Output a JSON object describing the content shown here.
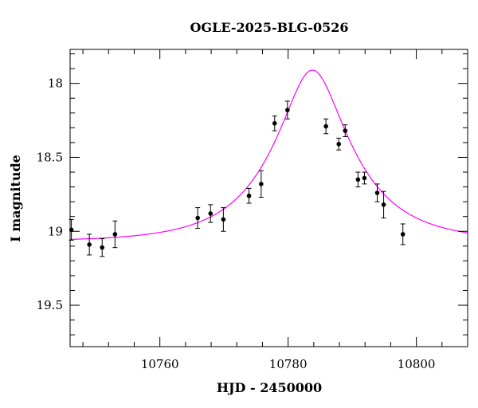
{
  "chart_data": {
    "type": "scatter",
    "title": "OGLE-2025-BLG-0526",
    "xlabel": "HJD - 2450000",
    "ylabel": "I magnitude",
    "xlim": [
      10746,
      10808
    ],
    "ylim": [
      19.78,
      17.77
    ],
    "y_inverted": true,
    "x_ticks": [
      10760,
      10780,
      10800
    ],
    "x_tick_labels": [
      "10760",
      "10780",
      "10800"
    ],
    "y_ticks": [
      18.0,
      18.5,
      19.0,
      19.5
    ],
    "y_tick_labels": [
      "18",
      "18.5",
      "19",
      "19.5"
    ],
    "grid": false,
    "legend": "none",
    "colors": {
      "points": "#000000",
      "model": "#ff00ff"
    },
    "series": [
      {
        "type": "errorbar",
        "x": [
          10746.2,
          10749.0,
          10751.0,
          10753.0,
          10765.9,
          10767.9,
          10769.9,
          10773.9,
          10775.8,
          10777.9,
          10779.9,
          10785.9,
          10787.9,
          10788.9,
          10790.9,
          10791.9,
          10793.9,
          10794.9,
          10797.9
        ],
        "y": [
          18.99,
          19.09,
          19.11,
          19.02,
          18.91,
          18.88,
          18.92,
          18.76,
          18.68,
          18.27,
          18.18,
          18.29,
          18.41,
          18.32,
          18.65,
          18.64,
          18.74,
          18.82,
          19.02
        ],
        "yerr": [
          0.07,
          0.07,
          0.06,
          0.09,
          0.07,
          0.06,
          0.08,
          0.05,
          0.09,
          0.05,
          0.06,
          0.05,
          0.04,
          0.04,
          0.05,
          0.04,
          0.06,
          0.09,
          0.07
        ]
      },
      {
        "type": "line",
        "model": "microlensing",
        "t0": 10783.8,
        "u0": 0.36,
        "tE": 12.0,
        "I_base": 19.07
      }
    ]
  }
}
